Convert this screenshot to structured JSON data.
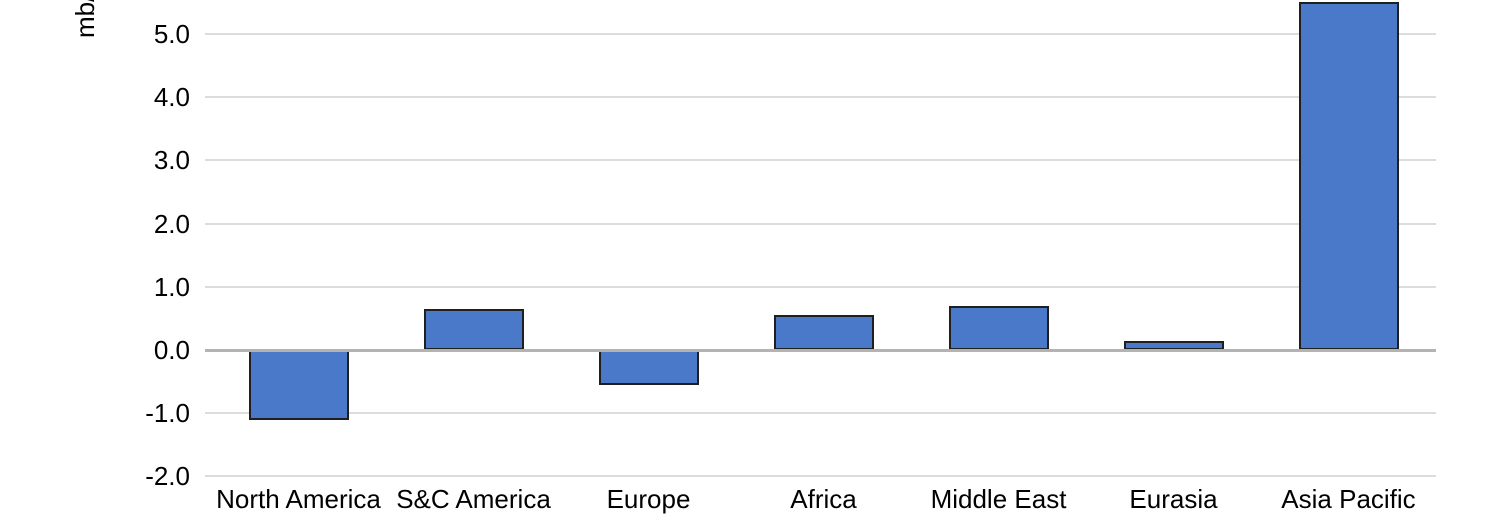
{
  "chart_data": {
    "type": "bar",
    "title": "",
    "xlabel": "",
    "ylabel": "mb/d",
    "categories": [
      "North America",
      "S&C America",
      "Europe",
      "Africa",
      "Middle East",
      "Eurasia",
      "Asia Pacific"
    ],
    "values": [
      -1.1,
      0.65,
      -0.55,
      0.55,
      0.7,
      0.15,
      5.5
    ],
    "yticks": [
      5.0,
      4.0,
      3.0,
      2.0,
      1.0,
      0.0,
      -1.0,
      -2.0
    ],
    "ytick_labels": [
      "5.0",
      "4.0",
      "3.0",
      "2.0",
      "1.0",
      "0.0",
      "-1.0",
      "-2.0"
    ],
    "ylim_visible": [
      -2.4,
      5.55
    ],
    "grid": true,
    "legend": false,
    "notes": "top of y-axis label and bottoms of category labels are clipped by the viewport",
    "colors": {
      "bar_fill": "#4a79c9",
      "bar_border": "#1f1f1f",
      "gridline": "#dcdcdc",
      "zero_line": "#b3b3b3",
      "text": "#000000",
      "background": "#ffffff"
    }
  }
}
